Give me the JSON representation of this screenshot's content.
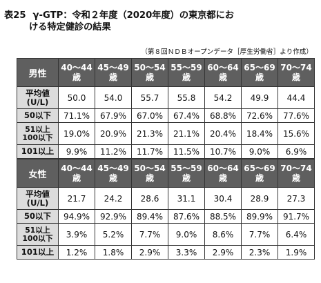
{
  "title": {
    "number": "表25",
    "line1": "γ-GTP：令和２年度（2020年度）の東京都にお",
    "line2": "ける特定健診の結果"
  },
  "source": "（第８回ＮＤＢオープンデータ［厚生労働省］より作成）",
  "age_groups": [
    {
      "range": "40～44",
      "unit": "歳"
    },
    {
      "range": "45～49",
      "unit": "歳"
    },
    {
      "range": "50～54",
      "unit": "歳"
    },
    {
      "range": "55～59",
      "unit": "歳"
    },
    {
      "range": "60～64",
      "unit": "歳"
    },
    {
      "range": "65～69",
      "unit": "歳"
    },
    {
      "range": "70～74",
      "unit": "歳"
    }
  ],
  "tables": {
    "male": {
      "header": "男性",
      "rows": [
        {
          "label1": "平均値",
          "label2": "(U/L)",
          "values": [
            "50.0",
            "54.0",
            "55.7",
            "55.8",
            "54.2",
            "49.9",
            "44.4"
          ]
        },
        {
          "label1": "50以下",
          "label2": "",
          "values": [
            "71.1%",
            "67.9%",
            "67.0%",
            "67.4%",
            "68.8%",
            "72.6%",
            "77.6%"
          ]
        },
        {
          "label1": "51以上",
          "label2": "100以下",
          "values": [
            "19.0%",
            "20.9%",
            "21.3%",
            "21.1%",
            "20.4%",
            "18.4%",
            "15.6%"
          ]
        },
        {
          "label1": "101以上",
          "label2": "",
          "values": [
            "9.9%",
            "11.2%",
            "11.7%",
            "11.5%",
            "10.7%",
            "9.0%",
            "6.9%"
          ]
        }
      ]
    },
    "female": {
      "header": "女性",
      "rows": [
        {
          "label1": "平均値",
          "label2": "(U/L)",
          "values": [
            "21.7",
            "24.2",
            "28.6",
            "31.1",
            "30.4",
            "28.9",
            "27.3"
          ]
        },
        {
          "label1": "50以下",
          "label2": "",
          "values": [
            "94.9%",
            "92.9%",
            "89.4%",
            "87.6%",
            "88.5%",
            "89.9%",
            "91.7%"
          ]
        },
        {
          "label1": "51以上",
          "label2": "100以下",
          "values": [
            "3.9%",
            "5.2%",
            "7.7%",
            "9.0%",
            "8.6%",
            "7.7%",
            "6.4%"
          ]
        },
        {
          "label1": "101以上",
          "label2": "",
          "values": [
            "1.2%",
            "1.8%",
            "2.9%",
            "3.3%",
            "2.9%",
            "2.3%",
            "1.9%"
          ]
        }
      ]
    }
  }
}
